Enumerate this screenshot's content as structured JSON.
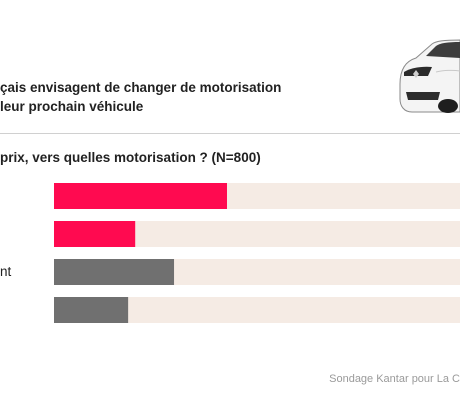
{
  "header": {
    "title_line1": "çais envisagent de changer de motorisation",
    "title_line2": " leur prochain véhicule"
  },
  "question": "prix, vers quelles motorisation ? (N=800)",
  "colors": {
    "accent": "#ff0a50",
    "grey_bar": "#707070",
    "track": "#f5ebe4"
  },
  "chart_data": {
    "type": "bar",
    "orientation": "horizontal",
    "categories": [
      "",
      "",
      "nt",
      ""
    ],
    "values": [
      49,
      23,
      34,
      21
    ],
    "bar_colors": [
      "#ff0a50",
      "#ff0a50",
      "#707070",
      "#707070"
    ],
    "xlim": [
      0,
      115
    ],
    "grid": false,
    "title": "",
    "xlabel": "",
    "ylabel": ""
  },
  "footer": {
    "source": "Sondage Kantar pour La C"
  }
}
